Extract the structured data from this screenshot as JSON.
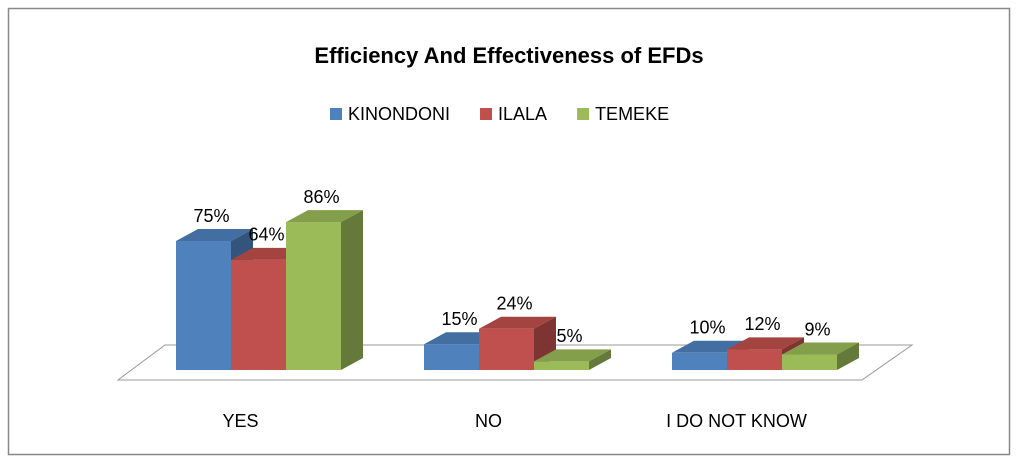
{
  "chart_data": {
    "type": "bar3d",
    "title": "Efficiency And Effectiveness of EFDs",
    "categories": [
      "YES",
      "NO",
      "I DO NOT KNOW"
    ],
    "series": [
      {
        "name": "KINONDONI",
        "color": "#4f81bd",
        "values": [
          75,
          15,
          10
        ],
        "value_labels": [
          "75%",
          "15%",
          "10%"
        ]
      },
      {
        "name": "ILALA",
        "color": "#c0504d",
        "values": [
          64,
          24,
          12
        ],
        "value_labels": [
          "64%",
          "24%",
          "12%"
        ]
      },
      {
        "name": "TEMEKE",
        "color": "#9bbb59",
        "values": [
          86,
          5,
          9
        ],
        "value_labels": [
          "86%",
          "5%",
          "9%"
        ]
      }
    ],
    "legend": "top"
  }
}
